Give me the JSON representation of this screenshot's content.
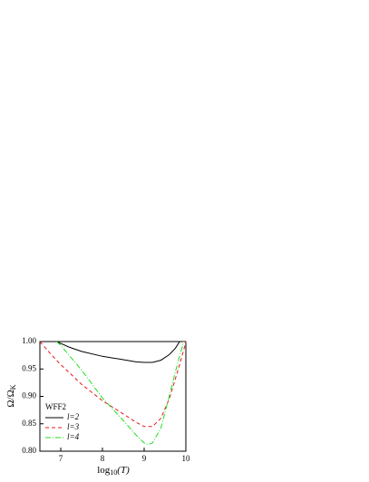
{
  "chart_data": {
    "type": "line",
    "x_label": {
      "main": "log",
      "sub": "10",
      "rest": "(T)"
    },
    "y_label": {
      "main": "Ω/Ω",
      "sub": "K"
    },
    "legend_title": "WFF2",
    "legend": "lower-left",
    "xlim": [
      6.5,
      10
    ],
    "xticks": [
      7,
      8,
      9,
      10
    ],
    "ylim": [
      0.8,
      1.0
    ],
    "yticks": [
      {
        "value": 0.8,
        "label": "0.80"
      },
      {
        "value": 0.85,
        "label": "0.85"
      },
      {
        "value": 0.9,
        "label": "0.90"
      },
      {
        "value": 0.95,
        "label": "0.95"
      },
      {
        "value": 1.0,
        "label": "1.00"
      }
    ],
    "series": [
      {
        "name": "l=2",
        "color": "#000000",
        "dash": "none",
        "x": [
          6.9,
          7.2,
          7.5,
          8.0,
          8.5,
          8.8,
          9.0,
          9.2,
          9.4,
          9.6,
          9.75,
          9.85
        ],
        "values": [
          1.0,
          0.99,
          0.982,
          0.973,
          0.967,
          0.963,
          0.962,
          0.962,
          0.966,
          0.976,
          0.988,
          1.0
        ]
      },
      {
        "name": "l=3",
        "color": "#e41a1c",
        "dash": "4,3",
        "x": [
          6.5,
          6.75,
          7.0,
          7.5,
          8.0,
          8.5,
          8.8,
          9.0,
          9.2,
          9.4,
          9.6,
          9.8,
          9.95,
          10.0
        ],
        "values": [
          1.0,
          0.978,
          0.958,
          0.922,
          0.892,
          0.868,
          0.853,
          0.845,
          0.845,
          0.86,
          0.895,
          0.945,
          0.985,
          1.0
        ]
      },
      {
        "name": "l=4",
        "color": "#22dd22",
        "dash": "6,2,1,2",
        "x": [
          6.9,
          7.0,
          7.5,
          8.0,
          8.5,
          8.8,
          9.0,
          9.1,
          9.2,
          9.4,
          9.6,
          9.8,
          9.95
        ],
        "values": [
          1.0,
          0.993,
          0.948,
          0.897,
          0.856,
          0.83,
          0.815,
          0.812,
          0.815,
          0.842,
          0.9,
          0.96,
          1.0
        ]
      }
    ]
  }
}
